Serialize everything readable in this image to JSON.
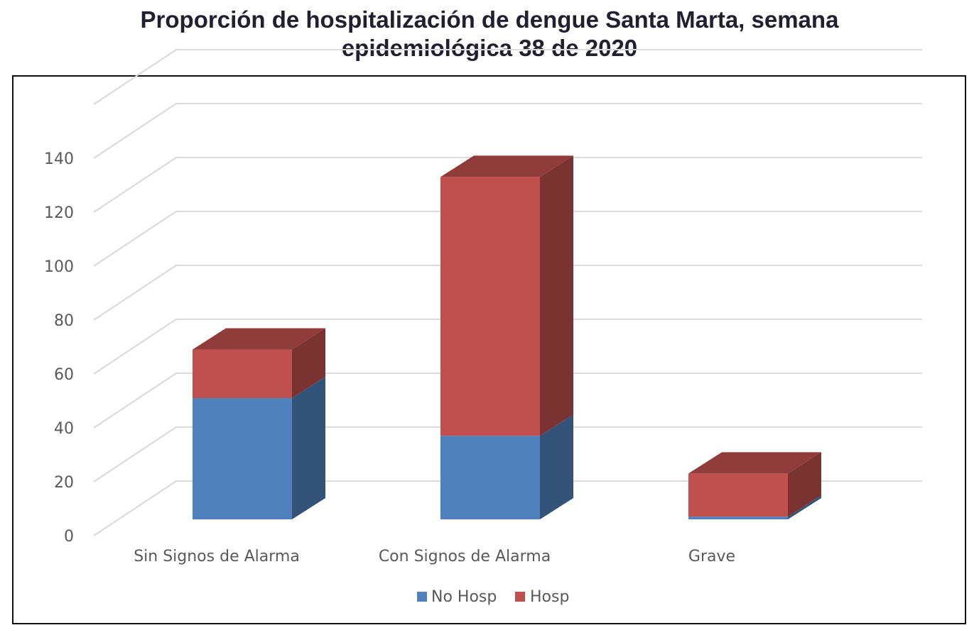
{
  "title": {
    "line1": "Proporción de hospitalización de dengue Santa Marta, semana",
    "line2": "epidemiológica 38 de 2020"
  },
  "chart_data": {
    "type": "bar",
    "stacked": true,
    "three_d": true,
    "title": "Proporción de hospitalización de dengue Santa Marta, semana epidemiológica 38 de 2020",
    "categories": [
      "Sin Signos de Alarma",
      "Con Signos de Alarma",
      "Grave"
    ],
    "series": [
      {
        "name": "No Hosp",
        "values": [
          45,
          31,
          1
        ],
        "color": "#4f81bd"
      },
      {
        "name": "Hosp",
        "values": [
          18,
          96,
          16
        ],
        "color": "#c0504d"
      }
    ],
    "ylim": [
      0,
      160
    ],
    "yticks": [
      0,
      20,
      40,
      60,
      80,
      100,
      120,
      140
    ],
    "xlabel": "",
    "ylabel": "",
    "grid": true,
    "legend_position": "bottom"
  }
}
